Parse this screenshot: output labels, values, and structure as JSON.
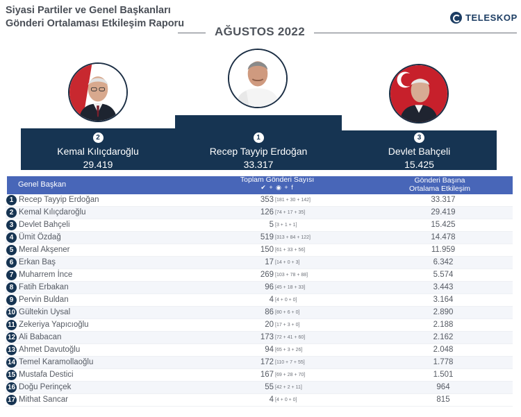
{
  "header": {
    "title_line1": "Siyasi Partiler ve Genel Başkanları",
    "title_line2": "Gönderi Ortalaması Etkileşim Raporu",
    "month": "AĞUSTOS 2022",
    "logo_text": "TELESKOP",
    "logo_icon": "teleskop-logo-icon"
  },
  "podium": [
    {
      "rank": "1",
      "name": "Recep Tayyip Erdoğan",
      "value": "33.317"
    },
    {
      "rank": "2",
      "name": "Kemal Kılıçdaroğlu",
      "value": "29.419"
    },
    {
      "rank": "3",
      "name": "Devlet Bahçeli",
      "value": "15.425"
    }
  ],
  "table": {
    "col_leader": "Genel Başkan",
    "col_posts": "Toplam Gönderi Sayısı",
    "col_posts_icons": "✔ + ◉ + f",
    "col_avg_line1": "Gönderi Başına",
    "col_avg_line2": "Ortalama Etkileşim",
    "rows": [
      {
        "rank": "1",
        "name": "Recep Tayyip Erdoğan",
        "posts": "353",
        "breakdown": "[181 + 30 + 142]",
        "avg": "33.317"
      },
      {
        "rank": "2",
        "name": "Kemal Kılıçdaroğlu",
        "posts": "126",
        "breakdown": "[74 + 17 + 35]",
        "avg": "29.419"
      },
      {
        "rank": "3",
        "name": "Devlet Bahçeli",
        "posts": "5",
        "breakdown": "[3 + 1 + 1]",
        "avg": "15.425"
      },
      {
        "rank": "4",
        "name": "Ümit Özdağ",
        "posts": "519",
        "breakdown": "[313 + 84 + 122]",
        "avg": "14.478"
      },
      {
        "rank": "5",
        "name": "Meral Akşener",
        "posts": "150",
        "breakdown": "[61 + 33 + 56]",
        "avg": "11.959"
      },
      {
        "rank": "6",
        "name": "Erkan Baş",
        "posts": "17",
        "breakdown": "[14 + 0 + 3]",
        "avg": "6.342"
      },
      {
        "rank": "7",
        "name": "Muharrem İnce",
        "posts": "269",
        "breakdown": "[103 + 78 + 88]",
        "avg": "5.574"
      },
      {
        "rank": "8",
        "name": "Fatih Erbakan",
        "posts": "96",
        "breakdown": "[45 + 18 + 33]",
        "avg": "3.443"
      },
      {
        "rank": "9",
        "name": "Pervin Buldan",
        "posts": "4",
        "breakdown": "[4 + 0 + 0]",
        "avg": "3.164"
      },
      {
        "rank": "10",
        "name": "Gültekin Uysal",
        "posts": "86",
        "breakdown": "[80 + 6 + 0]",
        "avg": "2.890"
      },
      {
        "rank": "11",
        "name": "Zekeriya Yapıcıoğlu",
        "posts": "20",
        "breakdown": "[17 + 3 + 0]",
        "avg": "2.188"
      },
      {
        "rank": "12",
        "name": "Ali Babacan",
        "posts": "173",
        "breakdown": "[72 + 41 + 60]",
        "avg": "2.162"
      },
      {
        "rank": "13",
        "name": "Ahmet Davutoğlu",
        "posts": "94",
        "breakdown": "[65 + 3 + 26]",
        "avg": "2.048"
      },
      {
        "rank": "14",
        "name": "Temel Karamollaoğlu",
        "posts": "172",
        "breakdown": "[110 + 7 + 55]",
        "avg": "1.778"
      },
      {
        "rank": "15",
        "name": "Mustafa Destici",
        "posts": "167",
        "breakdown": "[69 + 28 + 70]",
        "avg": "1.501"
      },
      {
        "rank": "16",
        "name": "Doğu Perinçek",
        "posts": "55",
        "breakdown": "[42 + 2 + 11]",
        "avg": "964"
      },
      {
        "rank": "17",
        "name": "Mithat Sancar",
        "posts": "4",
        "breakdown": "[4 + 0 + 0]",
        "avg": "815"
      }
    ]
  },
  "colors": {
    "navy": "#163452",
    "table_header": "#4866b8",
    "text": "#555a63"
  }
}
